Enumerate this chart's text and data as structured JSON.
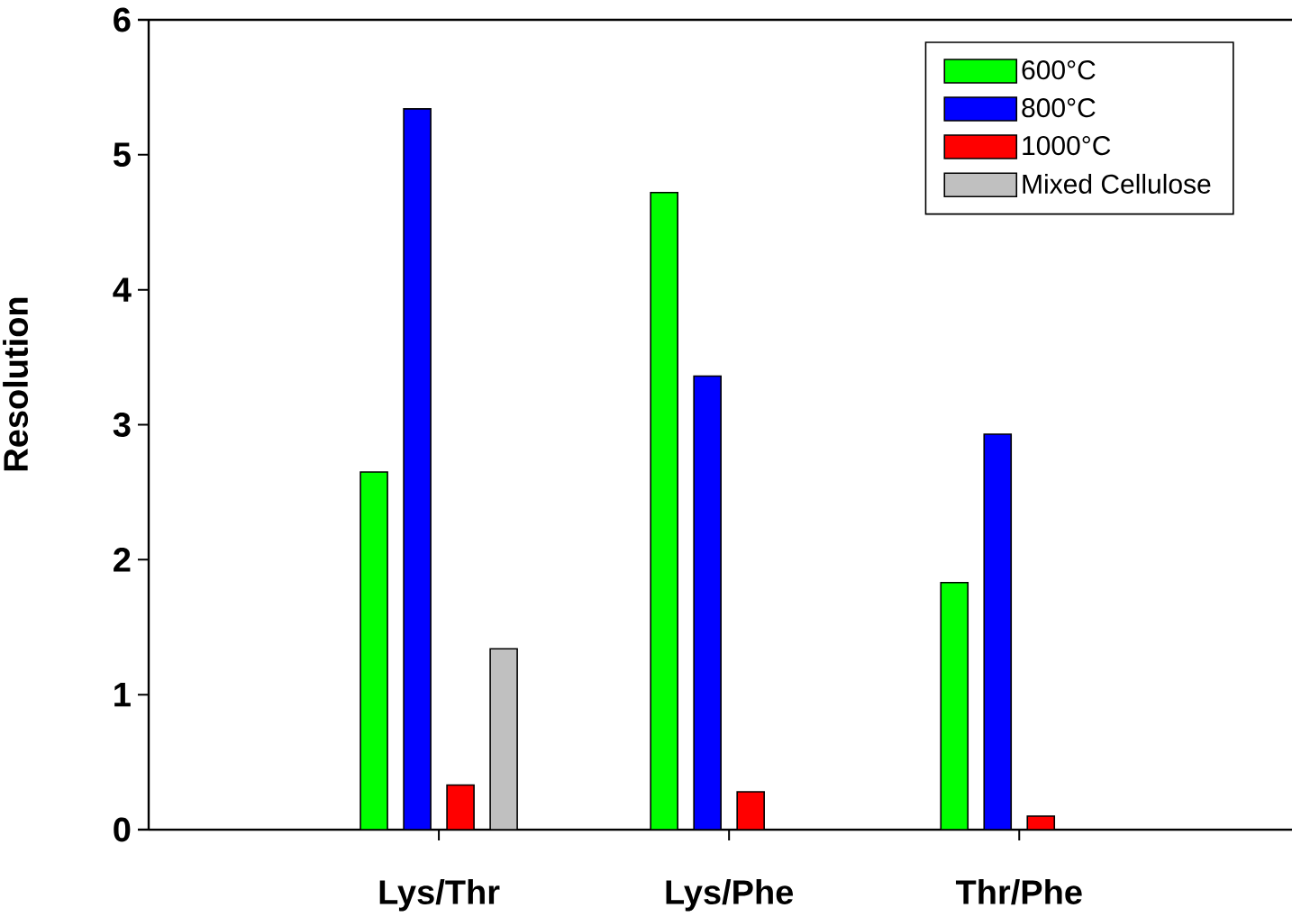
{
  "chart_data": {
    "type": "bar",
    "ylabel": "Resolution",
    "categories": [
      "Lys/Thr",
      "Lys/Phe",
      "Thr/Phe"
    ],
    "series": [
      {
        "name": "600°C",
        "color": "#00ff00",
        "values": [
          2.65,
          4.72,
          1.83
        ]
      },
      {
        "name": "800°C",
        "color": "#0000ff",
        "values": [
          5.34,
          3.36,
          2.93
        ]
      },
      {
        "name": "1000°C",
        "color": "#ff0000",
        "values": [
          0.33,
          0.28,
          0.1
        ]
      },
      {
        "name": "Mixed Cellulose",
        "color": "#c0c0c0",
        "values": [
          1.34,
          null,
          null
        ]
      }
    ],
    "ylim": [
      0,
      6
    ],
    "yticks": [
      0,
      1,
      2,
      3,
      4,
      5,
      6
    ],
    "grid": false,
    "legend": "top right"
  }
}
